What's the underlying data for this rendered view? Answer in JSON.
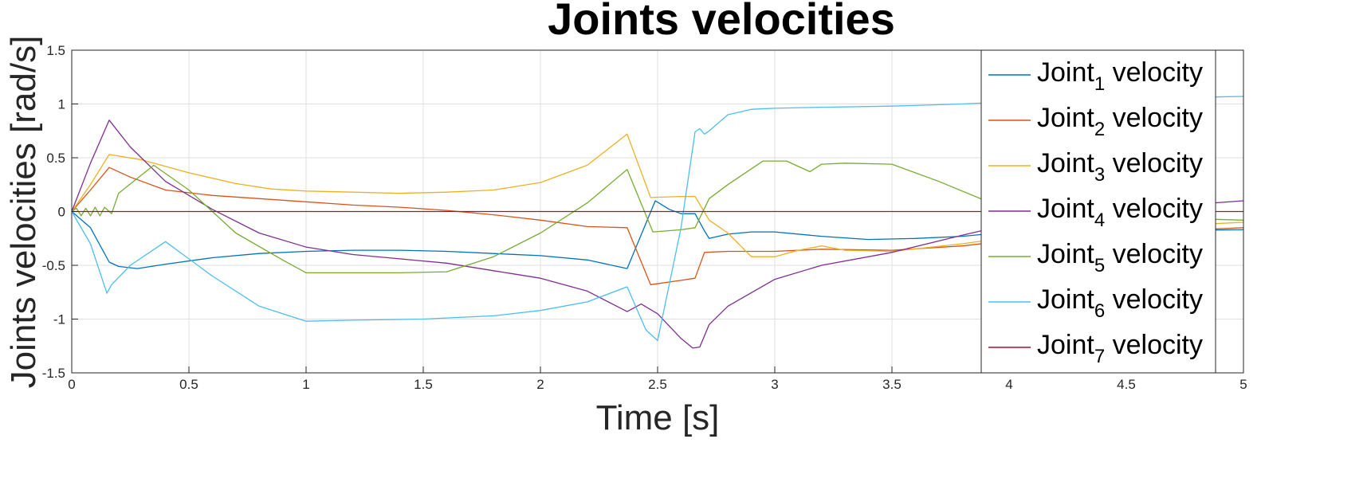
{
  "chart_data": {
    "type": "line",
    "title": "Joints velocities",
    "xlabel": "Time [s]",
    "ylabel": "Joints velocities [rad/s]",
    "xlim": [
      0,
      5
    ],
    "ylim": [
      -1.5,
      1.5
    ],
    "xticks": [
      0,
      0.5,
      1,
      1.5,
      2,
      2.5,
      3,
      3.5,
      4,
      4.5,
      5
    ],
    "xtick_labels": [
      "0",
      "0.5",
      "1",
      "1.5",
      "2",
      "2.5",
      "3",
      "3.5",
      "4",
      "4.5",
      "5"
    ],
    "yticks": [
      -1.5,
      -1,
      -0.5,
      0,
      0.5,
      1,
      1.5
    ],
    "ytick_labels": [
      "-1.5",
      "-1",
      "-0.5",
      "0",
      "0.5",
      "1",
      "1.5"
    ],
    "grid": true,
    "legend_position": "right-inside",
    "series": [
      {
        "name": "Joint1 velocity",
        "legend_base": "Joint",
        "legend_sub": "1",
        "legend_suffix": " velocity",
        "color": "#0072BD",
        "x": [
          0,
          0.08,
          0.13,
          0.16,
          0.2,
          0.28,
          0.4,
          0.6,
          0.8,
          1.0,
          1.2,
          1.4,
          1.6,
          1.8,
          2.0,
          2.2,
          2.37,
          2.49,
          2.55,
          2.6,
          2.66,
          2.7,
          2.72,
          2.8,
          2.9,
          3.0,
          3.2,
          3.4,
          3.6,
          3.8,
          3.9,
          4.0,
          4.5,
          5.0
        ],
        "y": [
          0,
          -0.15,
          -0.35,
          -0.47,
          -0.51,
          -0.53,
          -0.49,
          -0.43,
          -0.39,
          -0.37,
          -0.36,
          -0.36,
          -0.37,
          -0.39,
          -0.41,
          -0.45,
          -0.53,
          0.1,
          0.02,
          -0.02,
          -0.02,
          -0.18,
          -0.25,
          -0.21,
          -0.19,
          -0.19,
          -0.23,
          -0.26,
          -0.25,
          -0.23,
          -0.21,
          -0.2,
          -0.18,
          -0.17
        ]
      },
      {
        "name": "Joint2 velocity",
        "legend_base": "Joint",
        "legend_sub": "2",
        "legend_suffix": " velocity",
        "color": "#D95319",
        "x": [
          0,
          0.08,
          0.16,
          0.25,
          0.4,
          0.6,
          0.8,
          1.0,
          1.2,
          1.4,
          1.6,
          1.8,
          2.0,
          2.2,
          2.37,
          2.47,
          2.6,
          2.66,
          2.7,
          2.8,
          3.0,
          3.2,
          3.5,
          3.8,
          4.0,
          4.5,
          5.0
        ],
        "y": [
          0,
          0.2,
          0.41,
          0.32,
          0.2,
          0.15,
          0.12,
          0.09,
          0.06,
          0.04,
          0.01,
          -0.03,
          -0.08,
          -0.14,
          -0.15,
          -0.68,
          -0.64,
          -0.62,
          -0.38,
          -0.37,
          -0.37,
          -0.35,
          -0.36,
          -0.32,
          -0.27,
          -0.2,
          -0.15
        ]
      },
      {
        "name": "Joint3 velocity",
        "legend_base": "Joint",
        "legend_sub": "3",
        "legend_suffix": " velocity",
        "color": "#EDB120",
        "x": [
          0,
          0.08,
          0.16,
          0.3,
          0.5,
          0.7,
          0.85,
          1.0,
          1.2,
          1.4,
          1.6,
          1.8,
          2.0,
          2.2,
          2.37,
          2.47,
          2.6,
          2.66,
          2.72,
          2.8,
          2.9,
          3.0,
          3.1,
          3.2,
          3.3,
          3.5,
          3.8,
          4.0,
          4.5,
          5.0
        ],
        "y": [
          0,
          0.25,
          0.53,
          0.48,
          0.36,
          0.26,
          0.21,
          0.19,
          0.18,
          0.17,
          0.18,
          0.2,
          0.27,
          0.43,
          0.72,
          0.13,
          0.14,
          0.14,
          -0.08,
          -0.2,
          -0.42,
          -0.42,
          -0.36,
          -0.32,
          -0.36,
          -0.37,
          -0.3,
          -0.24,
          -0.15,
          -0.1
        ]
      },
      {
        "name": "Joint4 velocity",
        "legend_base": "Joint",
        "legend_sub": "4",
        "legend_suffix": " velocity",
        "color": "#7E2F8E",
        "x": [
          0,
          0.08,
          0.16,
          0.25,
          0.4,
          0.6,
          0.8,
          1.0,
          1.2,
          1.4,
          1.6,
          1.8,
          2.0,
          2.2,
          2.37,
          2.43,
          2.5,
          2.6,
          2.65,
          2.68,
          2.72,
          2.8,
          3.0,
          3.2,
          3.5,
          3.8,
          3.9,
          4.0,
          4.5,
          5.0
        ],
        "y": [
          0,
          0.45,
          0.85,
          0.6,
          0.28,
          0.02,
          -0.2,
          -0.33,
          -0.4,
          -0.44,
          -0.48,
          -0.55,
          -0.62,
          -0.74,
          -0.93,
          -0.86,
          -0.95,
          -1.18,
          -1.27,
          -1.26,
          -1.05,
          -0.88,
          -0.63,
          -0.5,
          -0.38,
          -0.22,
          -0.17,
          -0.12,
          0.02,
          0.1
        ]
      },
      {
        "name": "Joint5 velocity",
        "legend_base": "Joint",
        "legend_sub": "5",
        "legend_suffix": " velocity",
        "color": "#77AC30",
        "x": [
          0,
          0.02,
          0.04,
          0.06,
          0.08,
          0.1,
          0.12,
          0.14,
          0.17,
          0.2,
          0.35,
          0.5,
          0.7,
          0.9,
          1.0,
          1.2,
          1.4,
          1.6,
          1.8,
          2.0,
          2.2,
          2.37,
          2.48,
          2.6,
          2.66,
          2.72,
          2.8,
          2.95,
          3.05,
          3.15,
          3.2,
          3.3,
          3.5,
          3.7,
          3.9,
          4.0,
          4.5,
          5.0
        ],
        "y": [
          0,
          0.03,
          -0.04,
          0.03,
          -0.04,
          0.04,
          -0.04,
          0.04,
          -0.02,
          0.17,
          0.43,
          0.2,
          -0.2,
          -0.45,
          -0.57,
          -0.57,
          -0.57,
          -0.56,
          -0.42,
          -0.2,
          0.08,
          0.39,
          -0.19,
          -0.17,
          -0.15,
          0.12,
          0.25,
          0.47,
          0.47,
          0.37,
          0.44,
          0.45,
          0.44,
          0.28,
          0.1,
          0.04,
          -0.05,
          -0.08
        ]
      },
      {
        "name": "Joint6 velocity",
        "legend_base": "Joint",
        "legend_sub": "6",
        "legend_suffix": " velocity",
        "color": "#4DBEEE",
        "x": [
          0,
          0.08,
          0.15,
          0.17,
          0.25,
          0.4,
          0.6,
          0.8,
          1.0,
          1.2,
          1.5,
          1.8,
          2.0,
          2.2,
          2.37,
          2.45,
          2.5,
          2.6,
          2.66,
          2.68,
          2.7,
          2.72,
          2.8,
          2.9,
          3.0,
          3.2,
          3.5,
          3.8,
          4.0,
          4.5,
          5.0
        ],
        "y": [
          0,
          -0.3,
          -0.76,
          -0.68,
          -0.5,
          -0.28,
          -0.6,
          -0.88,
          -1.02,
          -1.01,
          -1.0,
          -0.97,
          -0.92,
          -0.84,
          -0.7,
          -1.1,
          -1.2,
          -0.15,
          0.74,
          0.77,
          0.72,
          0.75,
          0.9,
          0.95,
          0.96,
          0.97,
          0.98,
          1.0,
          1.02,
          1.05,
          1.07
        ]
      },
      {
        "name": "Joint7 velocity",
        "legend_base": "Joint",
        "legend_sub": "7",
        "legend_suffix": " velocity",
        "color": "#A2142F",
        "x": [
          0,
          5
        ],
        "y": [
          0,
          0
        ]
      }
    ]
  }
}
